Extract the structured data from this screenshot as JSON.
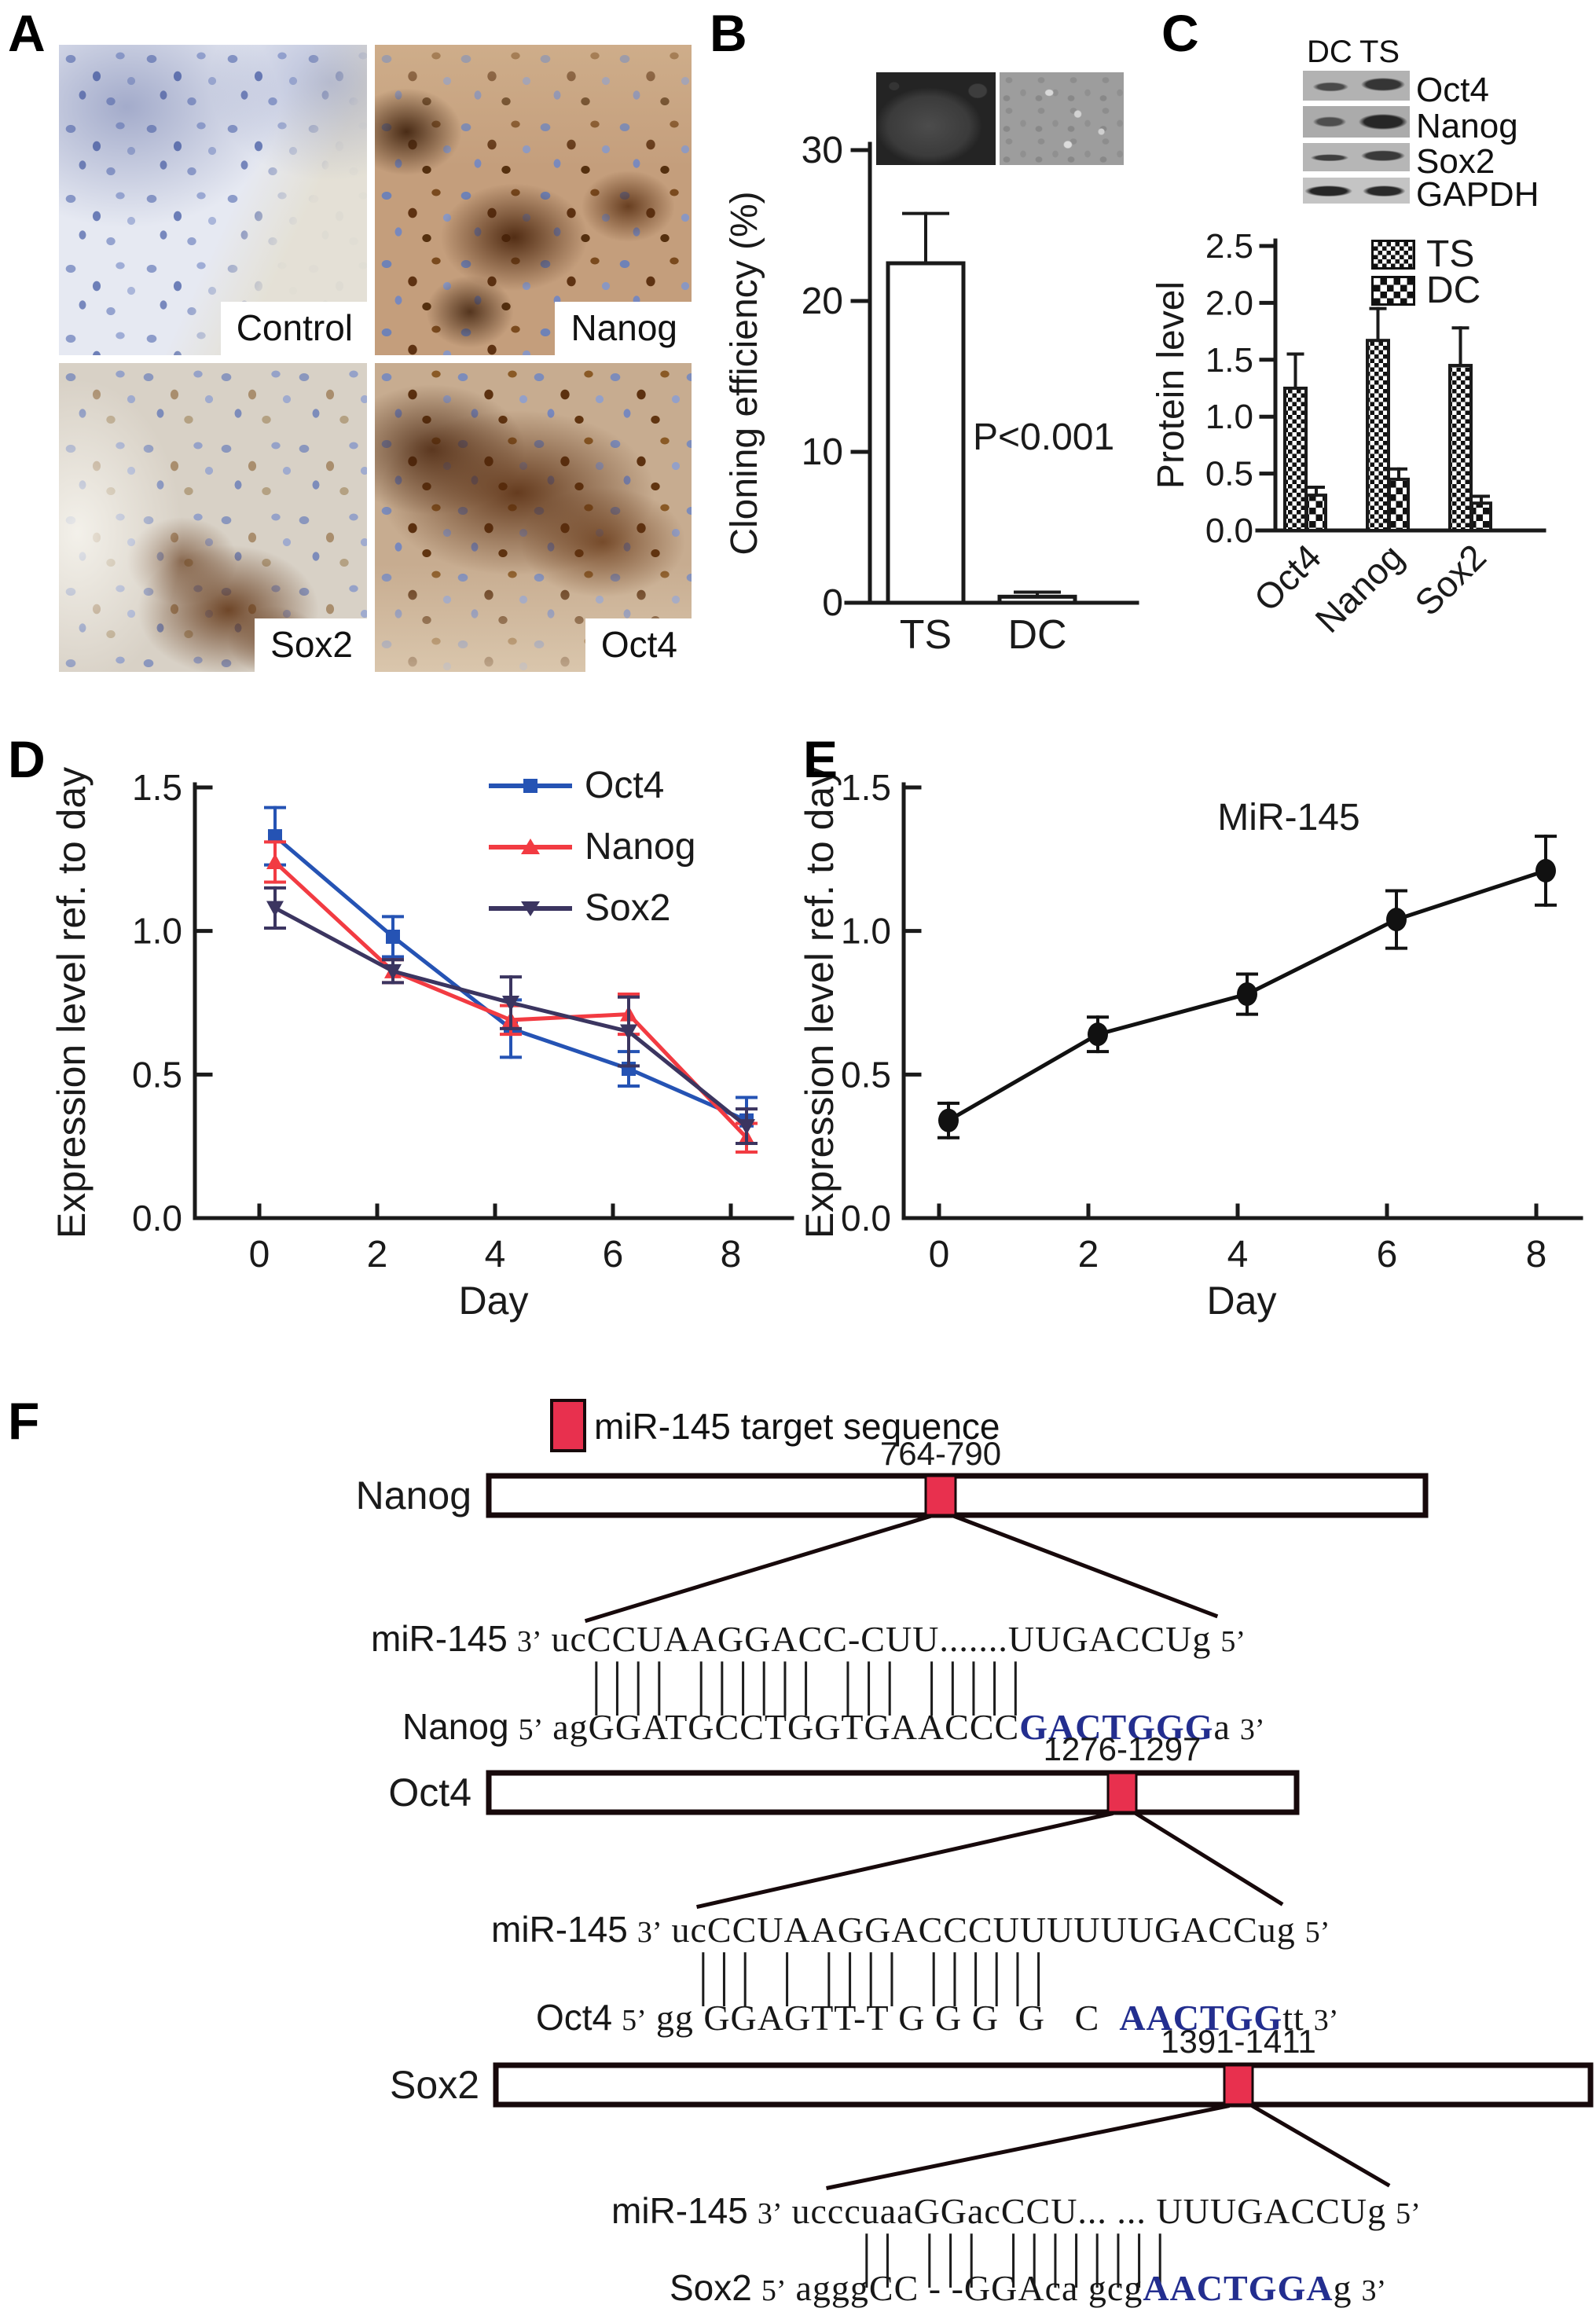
{
  "colors": {
    "target_box": "#e8304e",
    "sequence_highlight": "#232e8f",
    "axis": "#1a1a1a"
  },
  "figure": {
    "panel_a": {
      "label": "A",
      "tiles": [
        {
          "name": "control",
          "label": "Control"
        },
        {
          "name": "nanog",
          "label": "Nanog"
        },
        {
          "name": "sox2",
          "label": "Sox2"
        },
        {
          "name": "oct4",
          "label": "Oct4"
        }
      ]
    },
    "panel_b": {
      "label": "B"
    },
    "panel_c": {
      "label": "C",
      "blot": {
        "lanes": [
          "DC",
          "TS"
        ],
        "rows": [
          "Oct4",
          "Nanog",
          "Sox2",
          "GAPDH"
        ]
      }
    },
    "panel_d": {
      "label": "D"
    },
    "panel_e": {
      "label": "E"
    },
    "panel_f": {
      "label": "F",
      "legend_label": "miR-145 target sequence",
      "genes": [
        {
          "name": "Nanog",
          "range": "764-790",
          "mir_label": "miR-145",
          "mir_left": "3’",
          "mir_seq": "ucCCUAAGGACC-CUU.......UUGACCUg",
          "mir_right": "5’",
          "match": "|||| |||||| |||       |||||",
          "t_label": "Nanog",
          "t_left": "5’",
          "t_pre": "agGGATGCCTGGTGAACCC",
          "t_bold": "GACTGGG",
          "t_post": "a",
          "t_right": "3’"
        },
        {
          "name": "Oct4",
          "range": "1276-1297",
          "mir_label": "miR-145",
          "mir_left": "3’",
          "mir_seq": "ucCCUAAGGACCCUUUUUUGACCug",
          "mir_right": "5’",
          "match": "|||  |  ||||      ||||||",
          "t_label": "Oct4",
          "t_left": "5’",
          "t_pre": "gg GGAGTT-T G G G  G   C  ",
          "t_bold": "AACTGG",
          "t_post": "tt",
          "t_right": "3’"
        },
        {
          "name": "Sox2",
          "range": "1391-1411",
          "mir_label": "miR-145",
          "mir_left": "3’",
          "mir_seq": "ucccuaaGGacCCU... ... UUUGACCUg",
          "mir_right": "5’",
          "match": "||  |||     ||||||||",
          "t_label": "Sox2",
          "t_left": "5’",
          "t_pre": "agggCC - -GGAca gcg",
          "t_bold": "AACTGGA",
          "t_post": "g",
          "t_right": "3’"
        }
      ]
    }
  },
  "chart_data": [
    {
      "id": "cloning_efficiency",
      "panel": "B",
      "type": "bar",
      "categories": [
        "TS",
        "DC"
      ],
      "values": [
        22.5,
        0.4
      ],
      "errors": [
        3.3,
        0.3
      ],
      "title": "",
      "xlabel": "",
      "ylabel": "Cloning efficiency (%)",
      "ylim": [
        0,
        30
      ],
      "yticks": [
        0,
        10,
        20,
        30
      ],
      "annotation": "P<0.001",
      "bar_fill": "white",
      "grid": false
    },
    {
      "id": "protein_level",
      "panel": "C",
      "type": "bar",
      "categories": [
        "Oct4",
        "Nanog",
        "Sox2"
      ],
      "series": [
        {
          "name": "TS",
          "pattern": "fine-checker",
          "values": [
            1.25,
            1.67,
            1.45
          ],
          "errors": [
            0.3,
            0.28,
            0.33
          ]
        },
        {
          "name": "DC",
          "pattern": "coarse-checker",
          "values": [
            0.31,
            0.45,
            0.24
          ],
          "errors": [
            0.07,
            0.09,
            0.06
          ]
        }
      ],
      "title": "",
      "xlabel": "",
      "ylabel": "Protein level",
      "ylim": [
        0,
        2.5
      ],
      "yticks": [
        0.0,
        0.5,
        1.0,
        1.5,
        2.0,
        2.5
      ],
      "legend_position": "top-right",
      "grid": false
    },
    {
      "id": "stemness_markers_expression",
      "panel": "D",
      "type": "line",
      "x": [
        0,
        2,
        4,
        6,
        8
      ],
      "series": [
        {
          "name": "Oct4",
          "color": "#2553b4",
          "marker": "square",
          "values": [
            1.33,
            0.98,
            0.66,
            0.52,
            0.34
          ],
          "errors": [
            0.1,
            0.07,
            0.1,
            0.06,
            0.08
          ]
        },
        {
          "name": "Nanog",
          "color": "#f23b42",
          "marker": "triangle-up",
          "values": [
            1.24,
            0.86,
            0.69,
            0.71,
            0.28
          ],
          "errors": [
            0.07,
            0.04,
            0.05,
            0.07,
            0.05
          ]
        },
        {
          "name": "Sox2",
          "color": "#3b3560",
          "marker": "triangle-down",
          "values": [
            1.08,
            0.86,
            0.75,
            0.65,
            0.32
          ],
          "errors": [
            0.07,
            0.04,
            0.09,
            0.12,
            0.06
          ]
        }
      ],
      "title": "",
      "xlabel": "Day",
      "ylabel": "Expression level ref. to day",
      "ylim": [
        0,
        1.5
      ],
      "yticks": [
        0.0,
        0.5,
        1.0,
        1.5
      ],
      "xticks": [
        0,
        2,
        4,
        6,
        8
      ],
      "legend_position": "top-right",
      "grid": false
    },
    {
      "id": "mir145_expression",
      "panel": "E",
      "type": "line",
      "x": [
        0,
        2,
        4,
        6,
        8
      ],
      "series": [
        {
          "name": "MiR-145",
          "color": "#111111",
          "marker": "circle",
          "values": [
            0.34,
            0.64,
            0.78,
            1.04,
            1.21
          ],
          "errors": [
            0.06,
            0.06,
            0.07,
            0.1,
            0.12
          ]
        }
      ],
      "title": "MiR-145",
      "xlabel": "Day",
      "ylabel": "Expression level ref. to day",
      "ylim": [
        0,
        1.5
      ],
      "yticks": [
        0.0,
        0.5,
        1.0,
        1.5
      ],
      "xticks": [
        0,
        2,
        4,
        6,
        8
      ],
      "grid": false
    }
  ]
}
